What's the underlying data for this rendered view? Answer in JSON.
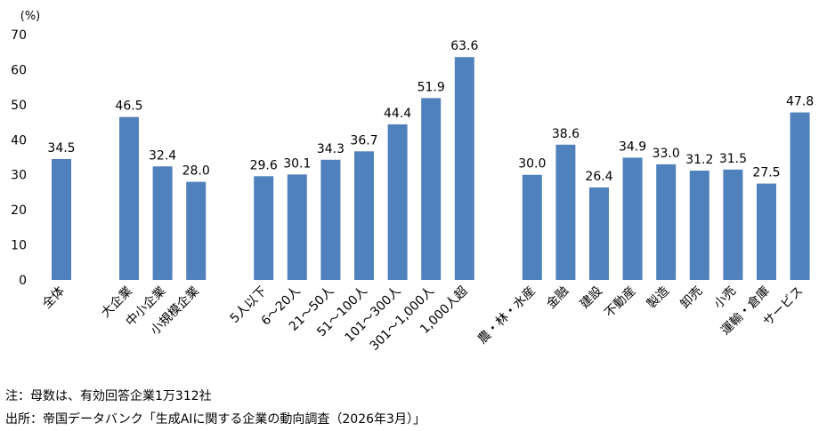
{
  "chart_data": {
    "type": "bar",
    "unit_label": "(%)",
    "ylim": [
      0,
      70
    ],
    "yticks": [
      0,
      10,
      20,
      30,
      40,
      50,
      60,
      70
    ],
    "grid": false,
    "bar_color": "#4f81bd",
    "groups": [
      {
        "categories": [
          "全体"
        ],
        "values": [
          34.5
        ]
      },
      {
        "categories": [
          "大企業",
          "中小企業",
          "小規模企業"
        ],
        "values": [
          46.5,
          32.4,
          28.0
        ]
      },
      {
        "categories": [
          "5人以下",
          "6～20人",
          "21～50人",
          "51～100人",
          "101～300人",
          "301～1,000人",
          "1,000人超"
        ],
        "values": [
          29.6,
          30.1,
          34.3,
          36.7,
          44.4,
          51.9,
          63.6
        ]
      },
      {
        "categories": [
          "農・林・水産",
          "金融",
          "建設",
          "不動産",
          "製造",
          "卸売",
          "小売",
          "運輸・倉庫",
          "サービス"
        ],
        "values": [
          30.0,
          38.6,
          26.4,
          34.9,
          33.0,
          31.2,
          31.5,
          27.5,
          47.8
        ]
      }
    ]
  },
  "notes": {
    "note": "注：母数は、有効回答企業1万312社",
    "source": "出所：帝国データバンク「生成AIに関する企業の動向調査（2026年3月）」"
  }
}
